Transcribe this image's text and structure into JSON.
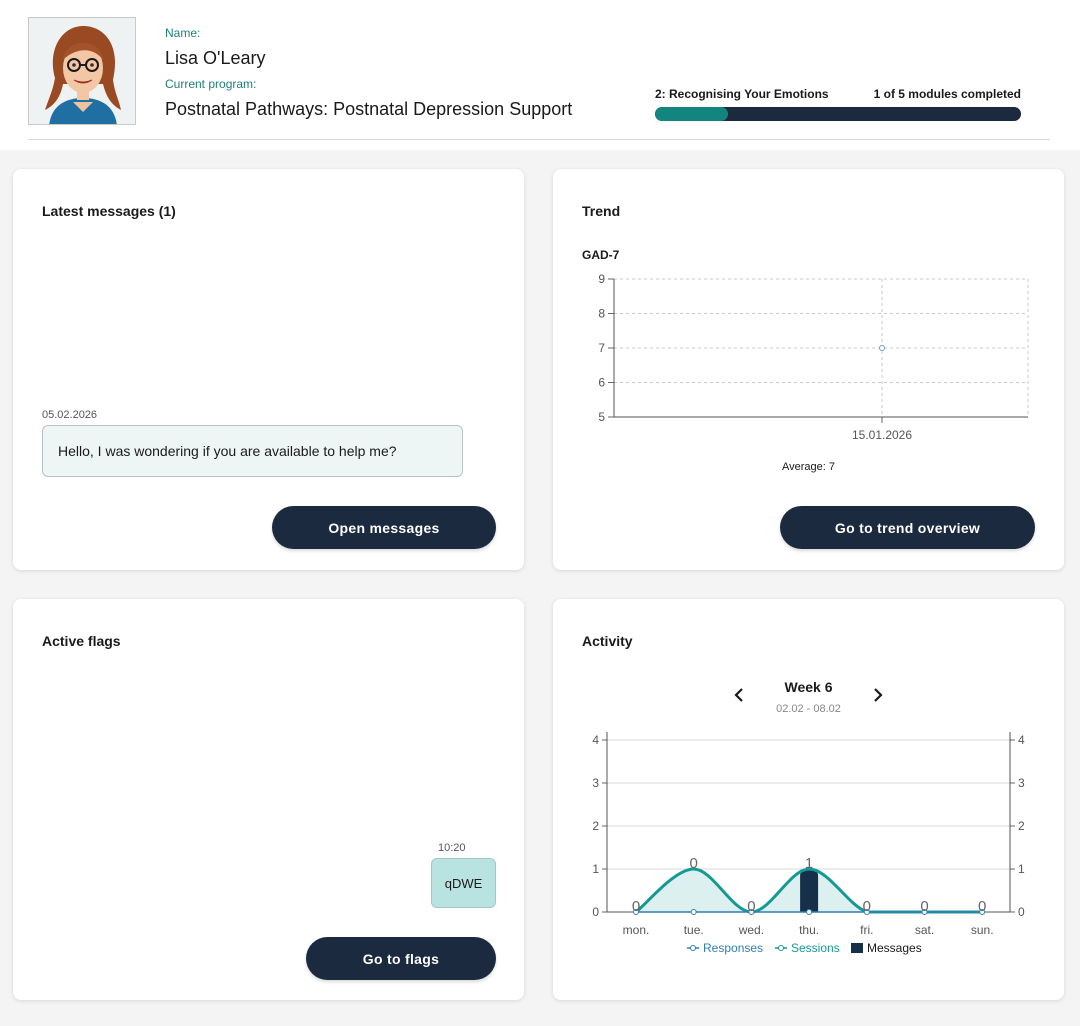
{
  "patient": {
    "name_label": "Name:",
    "name": "Lisa O'Leary",
    "program_label": "Current program:",
    "program": "Postnatal Pathways: Postnatal Depression Support"
  },
  "progress": {
    "module_title": "2: Recognising Your Emotions",
    "count_text": "1 of 5 modules completed",
    "fraction": 0.2,
    "track_color": "#1b2a3e",
    "fill_color": "#13857f"
  },
  "messages_card": {
    "title": "Latest messages (1)",
    "date": "05.02.2026",
    "message": "Hello, I was wondering if you are available to help me?",
    "button": "Open messages"
  },
  "trend_card": {
    "title": "Trend",
    "metric": "GAD-7",
    "average_text": "Average: 7",
    "button": "Go to trend overview"
  },
  "flags_card": {
    "title": "Active flags",
    "time": "10:20",
    "flag": "qDWE",
    "button": "Go to flags"
  },
  "activity_card": {
    "title": "Activity",
    "week": "Week 6",
    "range": "02.02 - 08.02",
    "prev_icon": "chevron-left-icon",
    "next_icon": "chevron-right-icon"
  },
  "chart_data": [
    {
      "type": "scatter",
      "title": "GAD-7",
      "x": [
        "15.01.2026"
      ],
      "y": [
        7
      ],
      "ylim": [
        5,
        9
      ],
      "yticks": [
        5,
        6,
        7,
        8,
        9
      ],
      "grid": true,
      "annotation": "Average: 7"
    },
    {
      "type": "line",
      "categories": [
        "mon.",
        "tue.",
        "wed.",
        "thu.",
        "fri.",
        "sat.",
        "sun."
      ],
      "series": [
        {
          "name": "Responses",
          "type": "line",
          "values": [
            0,
            0,
            0,
            0,
            0,
            0,
            0
          ],
          "color": "#2e7fb3"
        },
        {
          "name": "Sessions",
          "type": "area",
          "values": [
            0,
            1,
            0,
            1,
            0,
            0,
            0
          ],
          "color": "#159993"
        },
        {
          "name": "Messages",
          "type": "bar",
          "values": [
            0,
            0,
            0,
            1,
            0,
            0,
            0
          ],
          "color": "#16304a"
        }
      ],
      "data_labels": [
        "0",
        "0",
        "0",
        "1",
        "0",
        "0",
        "0"
      ],
      "ylim": [
        0,
        4
      ],
      "yticks": [
        0,
        1,
        2,
        3,
        4
      ],
      "legend": "bottom",
      "grid": true
    }
  ]
}
